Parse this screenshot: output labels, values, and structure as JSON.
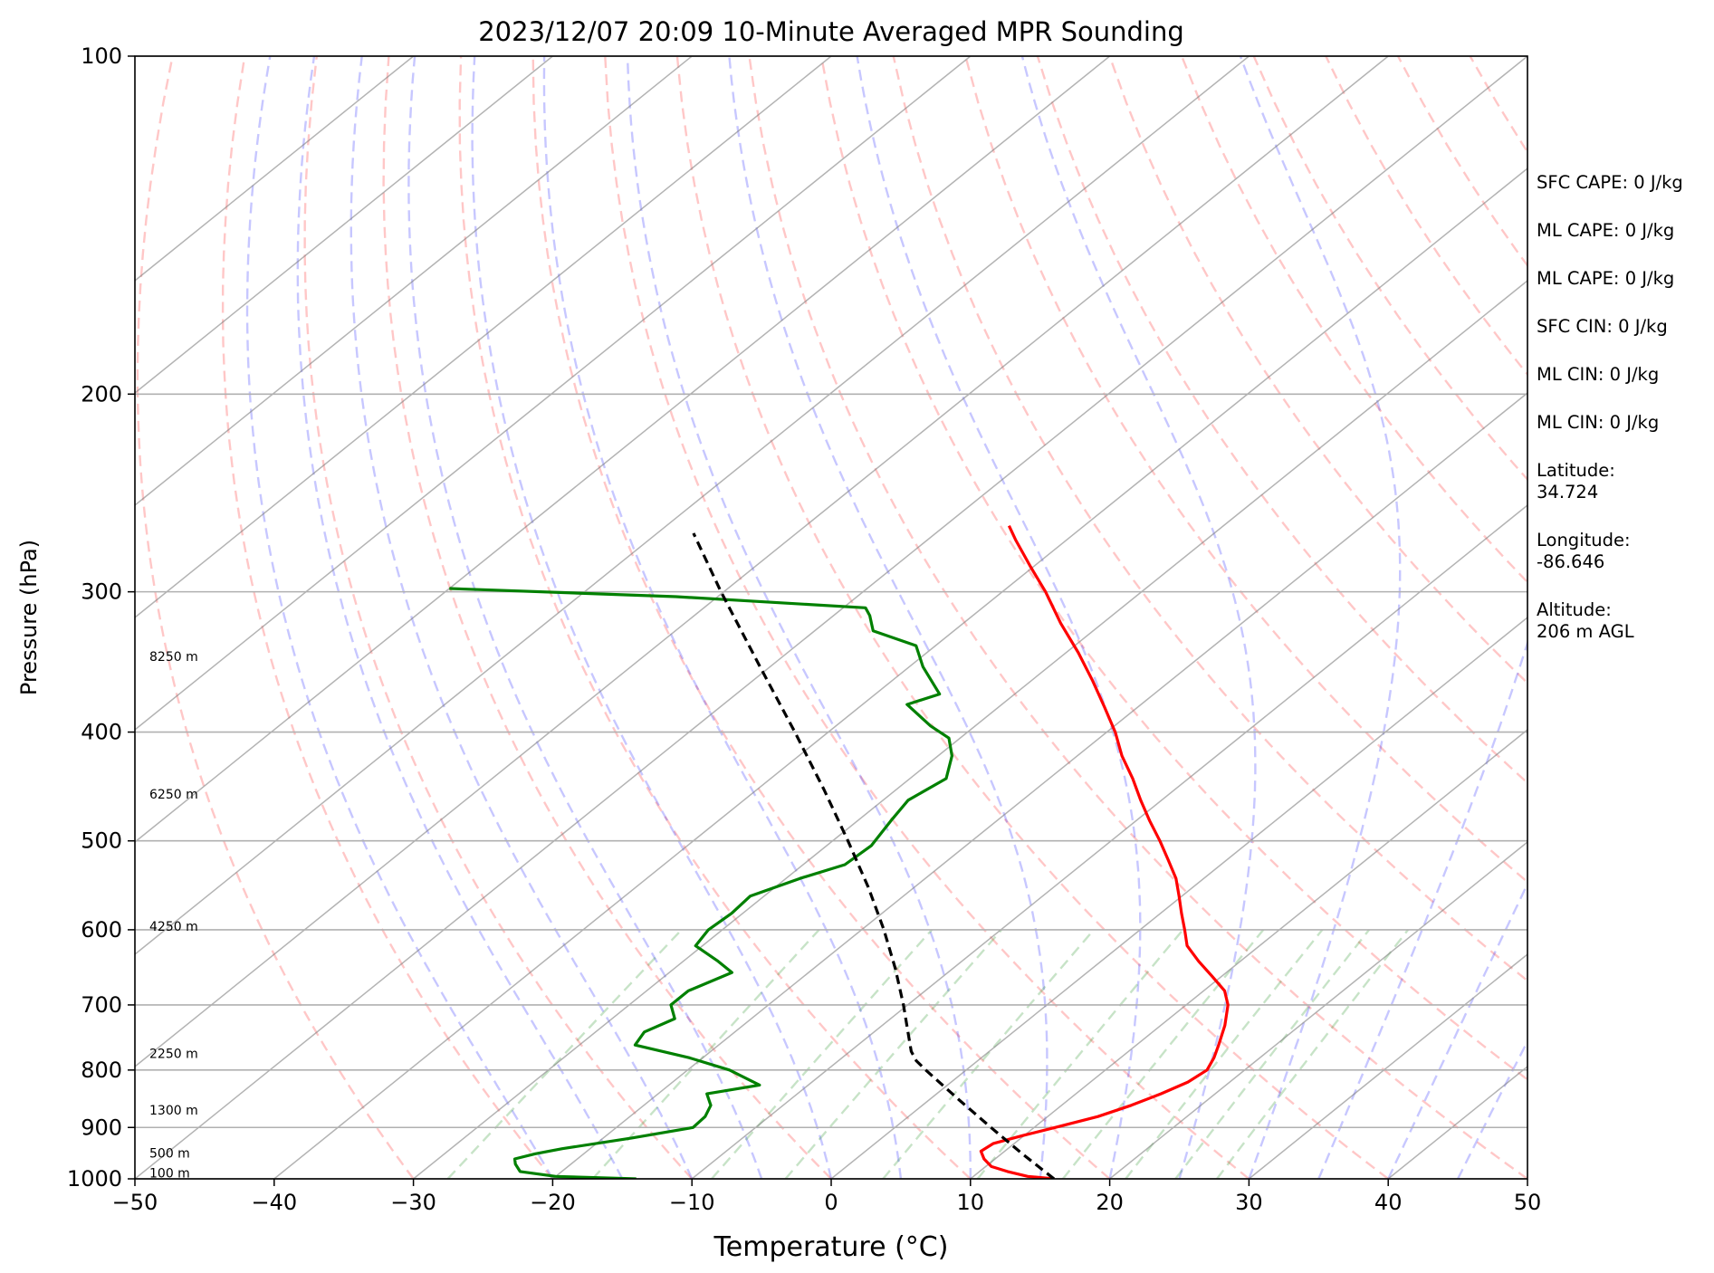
{
  "chart_data": {
    "type": "skew-t",
    "title": "2023/12/07 20:09 10-Minute Averaged MPR Sounding",
    "xlabel": "Temperature (°C)",
    "ylabel": "Pressure (hPa)",
    "xlim": [
      -50,
      50
    ],
    "ylim": [
      1000,
      100
    ],
    "y_scale": "log",
    "x_ticks": [
      "−50",
      "−40",
      "−30",
      "−20",
      "−10",
      "0",
      "10",
      "20",
      "30",
      "40",
      "50"
    ],
    "x_tick_values": [
      -50,
      -40,
      -30,
      -20,
      -10,
      0,
      10,
      20,
      30,
      40,
      50
    ],
    "y_ticks": [
      "100",
      "200",
      "300",
      "400",
      "500",
      "600",
      "700",
      "800",
      "900",
      "1000"
    ],
    "y_tick_values": [
      100,
      200,
      300,
      400,
      500,
      600,
      700,
      800,
      900,
      1000
    ],
    "grid": true,
    "series": [
      {
        "key": "temperature",
        "color": "#ff0000",
        "points": [
          {
            "p": 1000,
            "t": 16.0
          },
          {
            "p": 995,
            "t": 13.9
          },
          {
            "p": 985,
            "t": 12.0
          },
          {
            "p": 975,
            "t": 10.4
          },
          {
            "p": 960,
            "t": 9.2
          },
          {
            "p": 945,
            "t": 8.3
          },
          {
            "p": 930,
            "t": 8.5
          },
          {
            "p": 915,
            "t": 9.9
          },
          {
            "p": 900,
            "t": 11.5
          },
          {
            "p": 880,
            "t": 13.6
          },
          {
            "p": 860,
            "t": 15.0
          },
          {
            "p": 840,
            "t": 16.1
          },
          {
            "p": 820,
            "t": 17.0
          },
          {
            "p": 800,
            "t": 17.3
          },
          {
            "p": 780,
            "t": 16.7
          },
          {
            "p": 760,
            "t": 15.9
          },
          {
            "p": 730,
            "t": 14.6
          },
          {
            "p": 700,
            "t": 13.0
          },
          {
            "p": 680,
            "t": 11.5
          },
          {
            "p": 660,
            "t": 9.3
          },
          {
            "p": 640,
            "t": 7.0
          },
          {
            "p": 620,
            "t": 4.8
          },
          {
            "p": 600,
            "t": 3.2
          },
          {
            "p": 580,
            "t": 1.5
          },
          {
            "p": 560,
            "t": -0.2
          },
          {
            "p": 540,
            "t": -2.0
          },
          {
            "p": 520,
            "t": -4.2
          },
          {
            "p": 500,
            "t": -6.5
          },
          {
            "p": 480,
            "t": -9.0
          },
          {
            "p": 460,
            "t": -11.5
          },
          {
            "p": 440,
            "t": -14.0
          },
          {
            "p": 420,
            "t": -16.8
          },
          {
            "p": 400,
            "t": -19.4
          },
          {
            "p": 380,
            "t": -22.4
          },
          {
            "p": 360,
            "t": -25.6
          },
          {
            "p": 340,
            "t": -29.1
          },
          {
            "p": 320,
            "t": -33.0
          },
          {
            "p": 300,
            "t": -36.9
          },
          {
            "p": 285,
            "t": -40.2
          },
          {
            "p": 270,
            "t": -43.6
          },
          {
            "p": 262,
            "t": -45.4
          }
        ]
      },
      {
        "key": "dewpoint",
        "color": "#008000",
        "points": [
          {
            "p": 1000,
            "t": -14.0
          },
          {
            "p": 995,
            "t": -20.0
          },
          {
            "p": 985,
            "t": -23.0
          },
          {
            "p": 970,
            "t": -24.0
          },
          {
            "p": 960,
            "t": -24.5
          },
          {
            "p": 950,
            "t": -23.5
          },
          {
            "p": 940,
            "t": -22.0
          },
          {
            "p": 920,
            "t": -18.0
          },
          {
            "p": 900,
            "t": -14.5
          },
          {
            "p": 880,
            "t": -14.6
          },
          {
            "p": 860,
            "t": -15.2
          },
          {
            "p": 840,
            "t": -16.5
          },
          {
            "p": 825,
            "t": -13.5
          },
          {
            "p": 800,
            "t": -17.0
          },
          {
            "p": 780,
            "t": -21.0
          },
          {
            "p": 760,
            "t": -26.0
          },
          {
            "p": 740,
            "t": -26.5
          },
          {
            "p": 720,
            "t": -25.5
          },
          {
            "p": 700,
            "t": -27.0
          },
          {
            "p": 680,
            "t": -27.0
          },
          {
            "p": 655,
            "t": -25.5
          },
          {
            "p": 640,
            "t": -27.5
          },
          {
            "p": 620,
            "t": -30.5
          },
          {
            "p": 600,
            "t": -31.0
          },
          {
            "p": 580,
            "t": -30.8
          },
          {
            "p": 560,
            "t": -31.0
          },
          {
            "p": 540,
            "t": -29.0
          },
          {
            "p": 525,
            "t": -27.0
          },
          {
            "p": 505,
            "t": -26.8
          },
          {
            "p": 480,
            "t": -27.6
          },
          {
            "p": 460,
            "t": -28.2
          },
          {
            "p": 440,
            "t": -27.4
          },
          {
            "p": 420,
            "t": -29.0
          },
          {
            "p": 405,
            "t": -30.8
          },
          {
            "p": 395,
            "t": -33.2
          },
          {
            "p": 378,
            "t": -36.8
          },
          {
            "p": 370,
            "t": -35.4
          },
          {
            "p": 350,
            "t": -39.0
          },
          {
            "p": 335,
            "t": -41.4
          },
          {
            "p": 325,
            "t": -45.8
          },
          {
            "p": 315,
            "t": -47.4
          },
          {
            "p": 310,
            "t": -48.4
          },
          {
            "p": 303,
            "t": -63.0
          },
          {
            "p": 298,
            "t": -80.0
          }
        ]
      },
      {
        "key": "parcel",
        "color": "#000000",
        "dashed": true,
        "points": [
          {
            "p": 1000,
            "t": 16.0
          },
          {
            "p": 950,
            "t": 11.5
          },
          {
            "p": 900,
            "t": 6.9
          },
          {
            "p": 850,
            "t": 2.1
          },
          {
            "p": 800,
            "t": -2.9
          },
          {
            "p": 785,
            "t": -4.4
          },
          {
            "p": 770,
            "t": -5.6
          },
          {
            "p": 750,
            "t": -6.9
          },
          {
            "p": 700,
            "t": -10.3
          },
          {
            "p": 650,
            "t": -14.1
          },
          {
            "p": 600,
            "t": -18.4
          },
          {
            "p": 550,
            "t": -23.3
          },
          {
            "p": 500,
            "t": -28.9
          },
          {
            "p": 450,
            "t": -35.2
          },
          {
            "p": 400,
            "t": -42.4
          },
          {
            "p": 350,
            "t": -50.7
          },
          {
            "p": 300,
            "t": -60.2
          },
          {
            "p": 266,
            "t": -67.4
          }
        ]
      }
    ],
    "height_labels": [
      "100 m",
      "500 m",
      "1300 m",
      "2250 m",
      "4250 m",
      "6250 m",
      "8250 m"
    ],
    "height_label_pressures": [
      990,
      950,
      870,
      775,
      597,
      455,
      343
    ],
    "background_lines": {
      "dry_adiabats": "red dashed",
      "moist_adiabats": "blue dashed",
      "mixing_ratio_lines": "green dashed",
      "isotherms": "gray solid"
    }
  },
  "info": [
    "SFC CAPE: 0 J/kg",
    "ML CAPE: 0 J/kg",
    "ML CAPE: 0 J/kg",
    "SFC CIN: 0 J/kg",
    "ML CIN: 0 J/kg",
    "ML CIN: 0 J/kg",
    "Latitude:\n34.724",
    "Longitude:\n-86.646",
    "Altitude:\n206 m AGL"
  ]
}
